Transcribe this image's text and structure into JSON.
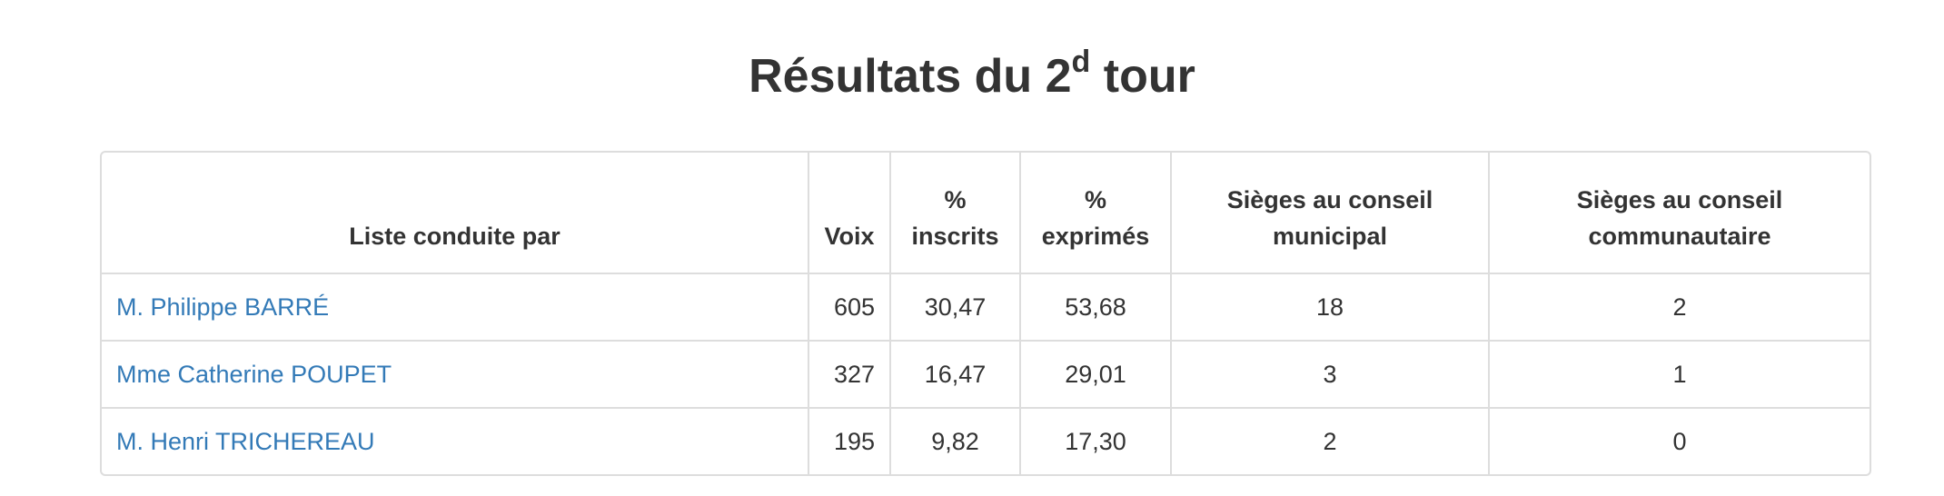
{
  "header": {
    "title": {
      "main": "Résultats du 2",
      "superscript": "d",
      "rest": " tour"
    }
  },
  "table": {
    "columns": [
      [
        "Liste conduite par"
      ],
      [
        "Voix"
      ],
      [
        "%",
        "inscrits"
      ],
      [
        "%",
        "exprimés"
      ],
      [
        "Sièges au conseil",
        "municipal"
      ],
      [
        "Sièges au conseil",
        "communautaire"
      ]
    ],
    "rows": [
      [
        "M. Philippe BARRÉ",
        "605",
        "30,47",
        "53,68",
        "18",
        "2"
      ],
      [
        "Mme Catherine POUPET",
        "327",
        "16,47",
        "29,01",
        "3",
        "1"
      ],
      [
        "M. Henri TRICHEREAU",
        "195",
        "9,82",
        "17,30",
        "2",
        "0"
      ]
    ]
  }
}
